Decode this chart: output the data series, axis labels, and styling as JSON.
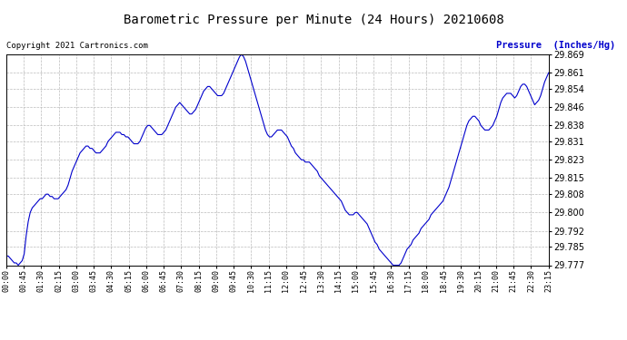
{
  "title": "Barometric Pressure per Minute (24 Hours) 20210608",
  "ylabel": "Pressure  (Inches/Hg)",
  "copyright": "Copyright 2021 Cartronics.com",
  "line_color": "#0000cc",
  "background_color": "#ffffff",
  "plot_bg_color": "#ffffff",
  "grid_color": "#bbbbbb",
  "title_color": "#000000",
  "ylabel_color": "#0000cc",
  "copyright_color": "#000000",
  "ylim": [
    29.777,
    29.869
  ],
  "yticks": [
    29.777,
    29.785,
    29.792,
    29.8,
    29.808,
    29.815,
    29.823,
    29.831,
    29.838,
    29.846,
    29.854,
    29.861,
    29.869
  ],
  "xtick_labels": [
    "00:00",
    "00:45",
    "01:30",
    "02:15",
    "03:00",
    "03:45",
    "04:30",
    "05:15",
    "06:00",
    "06:45",
    "07:30",
    "08:15",
    "09:00",
    "09:45",
    "10:30",
    "11:15",
    "12:00",
    "12:45",
    "13:30",
    "14:15",
    "15:00",
    "15:45",
    "16:30",
    "17:15",
    "18:00",
    "18:45",
    "19:30",
    "20:15",
    "21:00",
    "21:45",
    "22:30",
    "23:15"
  ],
  "pressure_values": [
    29.781,
    29.781,
    29.78,
    29.779,
    29.778,
    29.778,
    29.777,
    29.778,
    29.779,
    29.782,
    29.79,
    29.796,
    29.8,
    29.802,
    29.803,
    29.804,
    29.805,
    29.806,
    29.806,
    29.807,
    29.808,
    29.808,
    29.807,
    29.807,
    29.806,
    29.806,
    29.806,
    29.807,
    29.808,
    29.809,
    29.81,
    29.812,
    29.815,
    29.818,
    29.82,
    29.822,
    29.824,
    29.826,
    29.827,
    29.828,
    29.829,
    29.829,
    29.828,
    29.828,
    29.827,
    29.826,
    29.826,
    29.826,
    29.827,
    29.828,
    29.829,
    29.831,
    29.832,
    29.833,
    29.834,
    29.835,
    29.835,
    29.835,
    29.834,
    29.834,
    29.833,
    29.833,
    29.832,
    29.831,
    29.83,
    29.83,
    29.83,
    29.831,
    29.833,
    29.835,
    29.837,
    29.838,
    29.838,
    29.837,
    29.836,
    29.835,
    29.834,
    29.834,
    29.834,
    29.835,
    29.836,
    29.838,
    29.84,
    29.842,
    29.844,
    29.846,
    29.847,
    29.848,
    29.847,
    29.846,
    29.845,
    29.844,
    29.843,
    29.843,
    29.844,
    29.845,
    29.847,
    29.849,
    29.851,
    29.853,
    29.854,
    29.855,
    29.855,
    29.854,
    29.853,
    29.852,
    29.851,
    29.851,
    29.851,
    29.852,
    29.854,
    29.856,
    29.858,
    29.86,
    29.862,
    29.864,
    29.866,
    29.868,
    29.869,
    29.868,
    29.866,
    29.863,
    29.86,
    29.857,
    29.854,
    29.851,
    29.848,
    29.845,
    29.842,
    29.839,
    29.836,
    29.834,
    29.833,
    29.833,
    29.834,
    29.835,
    29.836,
    29.836,
    29.836,
    29.835,
    29.834,
    29.833,
    29.831,
    29.829,
    29.828,
    29.826,
    29.825,
    29.824,
    29.823,
    29.823,
    29.822,
    29.822,
    29.822,
    29.821,
    29.82,
    29.819,
    29.818,
    29.816,
    29.815,
    29.814,
    29.813,
    29.812,
    29.811,
    29.81,
    29.809,
    29.808,
    29.807,
    29.806,
    29.805,
    29.803,
    29.801,
    29.8,
    29.799,
    29.799,
    29.799,
    29.8,
    29.8,
    29.799,
    29.798,
    29.797,
    29.796,
    29.795,
    29.793,
    29.791,
    29.789,
    29.787,
    29.786,
    29.784,
    29.783,
    29.782,
    29.781,
    29.78,
    29.779,
    29.778,
    29.777,
    29.777,
    29.777,
    29.777,
    29.778,
    29.78,
    29.782,
    29.784,
    29.785,
    29.786,
    29.788,
    29.789,
    29.79,
    29.791,
    29.793,
    29.794,
    29.795,
    29.796,
    29.797,
    29.799,
    29.8,
    29.801,
    29.802,
    29.803,
    29.804,
    29.805,
    29.807,
    29.809,
    29.811,
    29.814,
    29.817,
    29.82,
    29.823,
    29.826,
    29.829,
    29.832,
    29.835,
    29.838,
    29.84,
    29.841,
    29.842,
    29.842,
    29.841,
    29.84,
    29.838,
    29.837,
    29.836,
    29.836,
    29.836,
    29.837,
    29.838,
    29.84,
    29.842,
    29.845,
    29.848,
    29.85,
    29.851,
    29.852,
    29.852,
    29.852,
    29.851,
    29.85,
    29.851,
    29.853,
    29.855,
    29.856,
    29.856,
    29.855,
    29.853,
    29.851,
    29.849,
    29.847,
    29.848,
    29.849,
    29.851,
    29.854,
    29.857,
    29.859,
    29.861
  ]
}
